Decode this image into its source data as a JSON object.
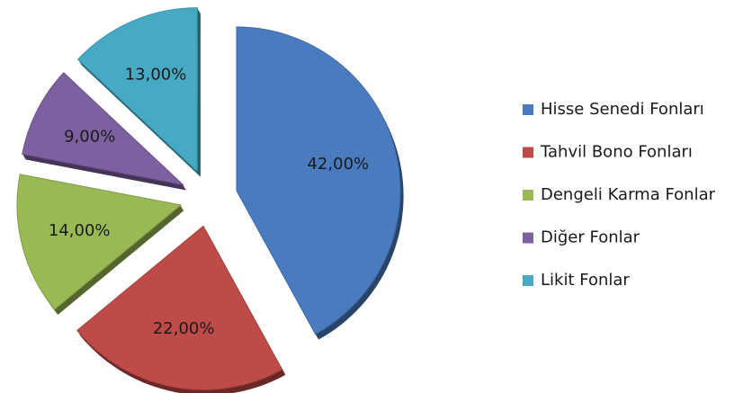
{
  "chart_data": {
    "type": "pie",
    "categories": [
      "Hisse Senedi Fonları",
      "Tahvil Bono Fonları",
      "Dengeli Karma Fonlar",
      "Diğer Fonlar",
      "Likit Fonlar"
    ],
    "values": [
      42,
      22,
      14,
      9,
      13
    ],
    "value_labels": [
      "42,00%",
      "22,00%",
      "14,00%",
      "9,00%",
      "13,00%"
    ],
    "colors": [
      "#4a7bbf",
      "#be4b48",
      "#98b954",
      "#7d60a0",
      "#46aac5"
    ],
    "legend": "right",
    "exploded": true
  }
}
